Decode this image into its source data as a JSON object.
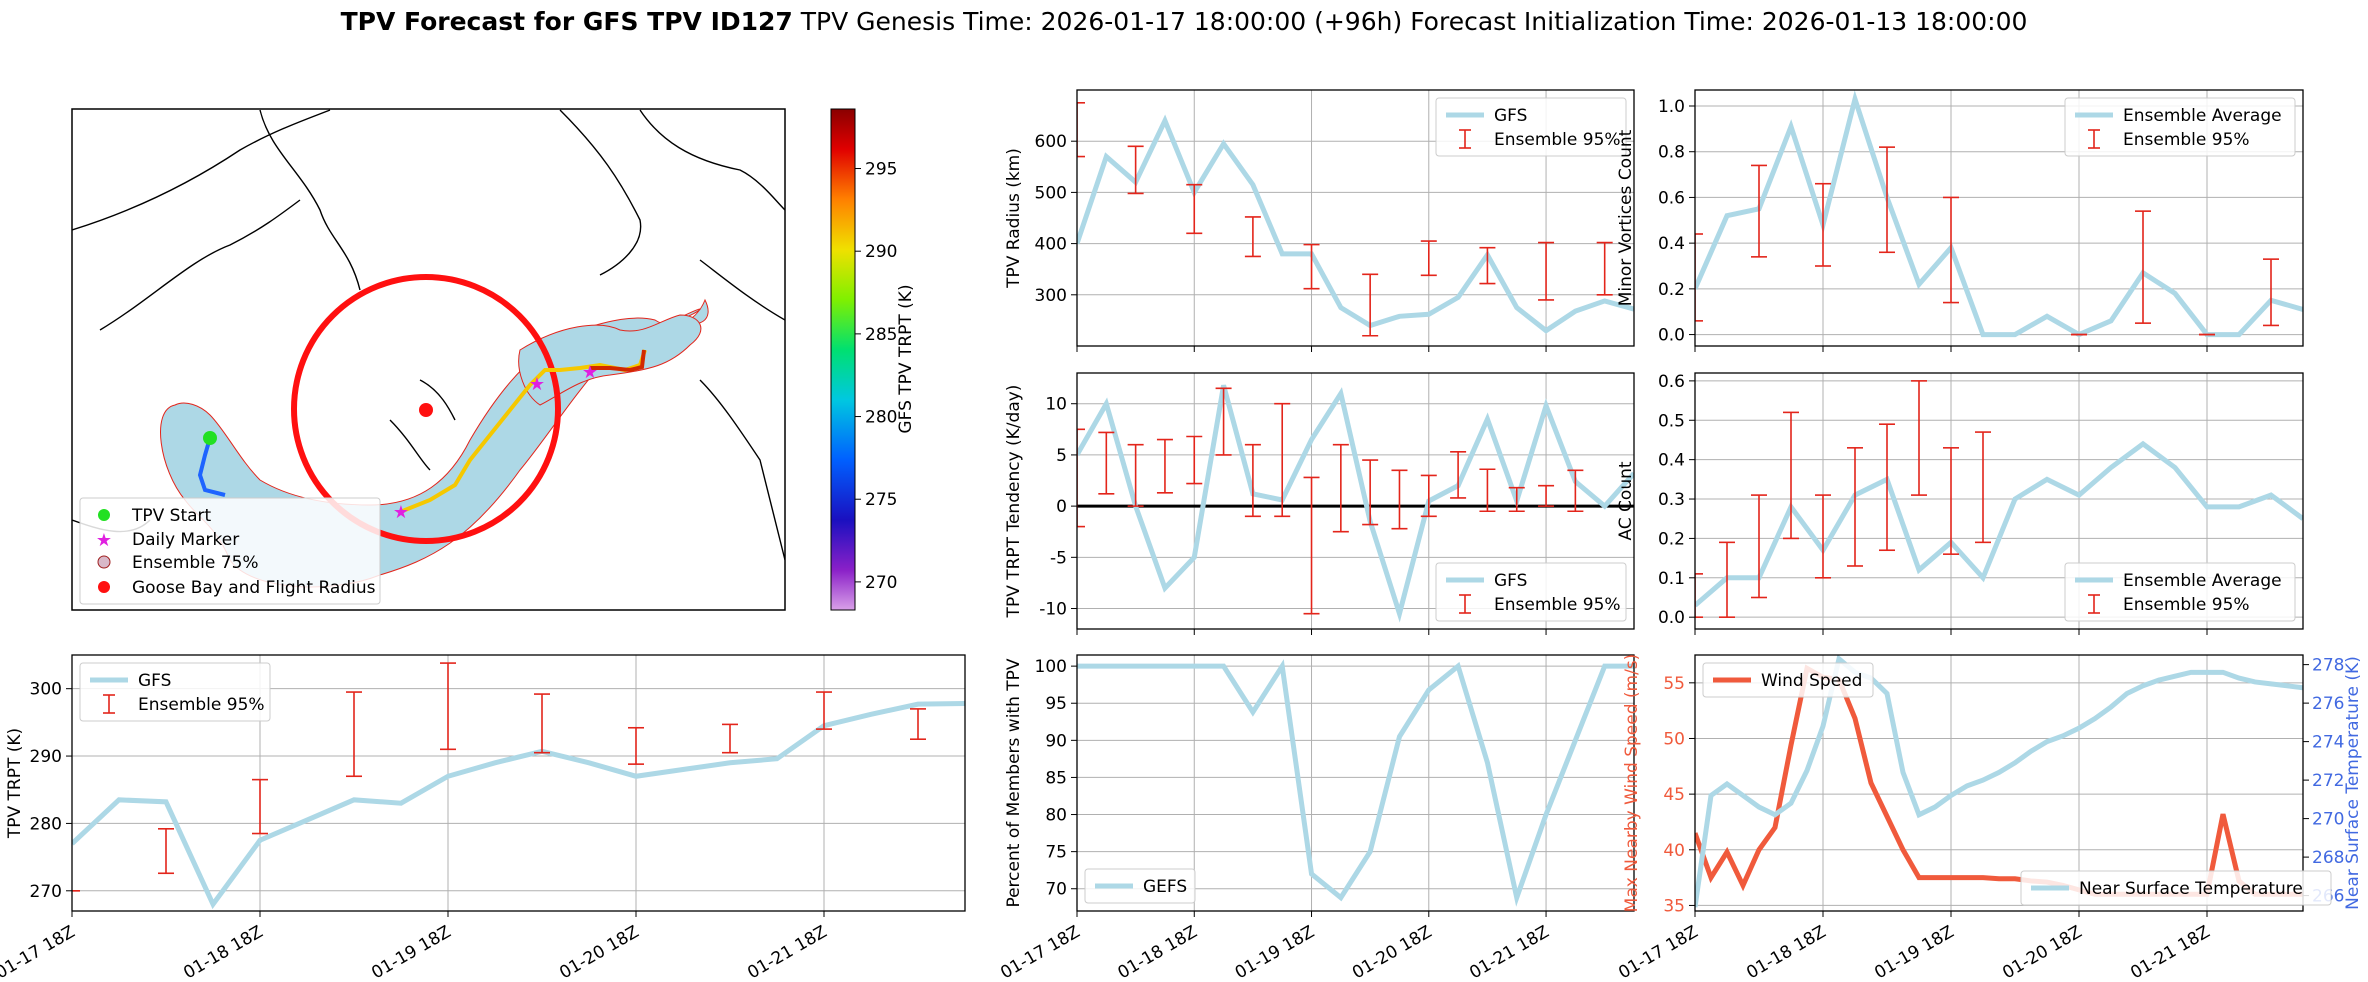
{
  "figure": {
    "title_bold": "TPV Forecast for GFS TPV ID127",
    "title_genesis": "TPV Genesis Time: 2026-01-17 18:00:00 (+96h)",
    "title_init": "Forecast Initialization Time: 2026-01-13 18:00:00",
    "x_tick_labels": [
      "01-17 18Z",
      "01-18 18Z",
      "01-19 18Z",
      "01-20 18Z",
      "01-21 18Z"
    ]
  },
  "colors": {
    "gfs": "#add8e6",
    "err": "#e3251b",
    "wind": "#f05a3c",
    "temp_axis": "#4169e1",
    "ocean": "#add8e6"
  },
  "map": {
    "colorbar_label": "GFS TPV TRPT (K)",
    "colorbar_ticks": [
      "270",
      "275",
      "280",
      "285",
      "290",
      "295"
    ],
    "legend": [
      "TPV Start",
      "Daily Marker",
      "Ensemble 75%",
      "Goose Bay and Flight Radius"
    ]
  },
  "chart_data": [
    {
      "id": "radius",
      "type": "line",
      "ylabel": "TPV Radius (km)",
      "ylim": [
        200,
        700
      ],
      "yticks": [
        300,
        400,
        500,
        600
      ],
      "legend": [
        "GFS",
        "Ensemble 95%"
      ],
      "x": [
        0,
        0.25,
        0.5,
        0.75,
        1,
        1.25,
        1.5,
        1.75,
        2,
        2.25,
        2.5,
        2.75,
        3,
        3.25,
        3.5,
        3.75,
        4,
        4.25,
        4.5,
        4.75
      ],
      "values": [
        400,
        570,
        520,
        640,
        500,
        595,
        515,
        380,
        380,
        275,
        240,
        258,
        262,
        295,
        378,
        275,
        230,
        268,
        288,
        272
      ],
      "errorbars": [
        {
          "x": 0,
          "lo": 570,
          "hi": 675
        },
        {
          "x": 0.5,
          "lo": 498,
          "hi": 590
        },
        {
          "x": 1,
          "lo": 420,
          "hi": 515
        },
        {
          "x": 1.5,
          "lo": 375,
          "hi": 452
        },
        {
          "x": 2,
          "lo": 312,
          "hi": 398
        },
        {
          "x": 2.5,
          "lo": 220,
          "hi": 340
        },
        {
          "x": 3,
          "lo": 338,
          "hi": 405
        },
        {
          "x": 3.5,
          "lo": 322,
          "hi": 392
        },
        {
          "x": 4,
          "lo": 290,
          "hi": 402
        },
        {
          "x": 4.5,
          "lo": 300,
          "hi": 402
        }
      ]
    },
    {
      "id": "minor",
      "type": "line",
      "ylabel": "Minor Vortices Count",
      "ylim": [
        -0.05,
        1.07
      ],
      "yticks": [
        0.0,
        0.2,
        0.4,
        0.6,
        0.8,
        1.0
      ],
      "legend": [
        "Ensemble Average",
        "Ensemble 95%"
      ],
      "x": [
        0,
        0.25,
        0.5,
        0.75,
        1,
        1.25,
        1.5,
        1.75,
        2,
        2.25,
        2.5,
        2.75,
        3,
        3.25,
        3.5,
        3.75,
        4,
        4.25,
        4.5,
        4.75
      ],
      "values": [
        0.2,
        0.52,
        0.55,
        0.91,
        0.48,
        1.03,
        0.6,
        0.22,
        0.38,
        0,
        0,
        0.08,
        0,
        0.06,
        0.27,
        0.18,
        0,
        0,
        0.15,
        0.11
      ],
      "errorbars": [
        {
          "x": 0,
          "lo": 0.06,
          "hi": 0.44
        },
        {
          "x": 0.5,
          "lo": 0.34,
          "hi": 0.74
        },
        {
          "x": 1,
          "lo": 0.3,
          "hi": 0.66
        },
        {
          "x": 1.5,
          "lo": 0.36,
          "hi": 0.82
        },
        {
          "x": 2,
          "lo": 0.14,
          "hi": 0.6
        },
        {
          "x": 3,
          "lo": 0,
          "hi": 0
        },
        {
          "x": 3.5,
          "lo": 0.05,
          "hi": 0.54
        },
        {
          "x": 4,
          "lo": 0,
          "hi": 0
        },
        {
          "x": 4.5,
          "lo": 0.04,
          "hi": 0.33
        }
      ]
    },
    {
      "id": "tendency",
      "type": "line",
      "ylabel": "TPV TRPT Tendency (K/day)",
      "ylim": [
        -12,
        13
      ],
      "yticks": [
        -10,
        -5,
        0,
        5,
        10
      ],
      "legend": [
        "GFS",
        "Ensemble 95%"
      ],
      "x": [
        0,
        0.25,
        0.5,
        0.75,
        1,
        1.25,
        1.5,
        1.75,
        2,
        2.25,
        2.5,
        2.75,
        3,
        3.25,
        3.5,
        3.75,
        4,
        4.25,
        4.5,
        4.75
      ],
      "values": [
        5,
        10,
        0,
        -8,
        -5,
        11.8,
        1.2,
        0.6,
        6.5,
        11,
        -1.5,
        -10.5,
        0.5,
        2,
        8.5,
        0.5,
        9.8,
        2.4,
        0,
        3.2
      ],
      "errorbars": [
        {
          "x": 0,
          "lo": -2,
          "hi": 7.5
        },
        {
          "x": 0.25,
          "lo": 1.2,
          "hi": 7.2
        },
        {
          "x": 0.5,
          "lo": 0,
          "hi": 6
        },
        {
          "x": 0.75,
          "lo": 1.3,
          "hi": 6.5
        },
        {
          "x": 1,
          "lo": 2.2,
          "hi": 6.8
        },
        {
          "x": 1.25,
          "lo": 5,
          "hi": 11.5
        },
        {
          "x": 1.5,
          "lo": -1,
          "hi": 6
        },
        {
          "x": 1.75,
          "lo": -1,
          "hi": 10
        },
        {
          "x": 2,
          "lo": -10.5,
          "hi": 2.8
        },
        {
          "x": 2.25,
          "lo": -2.5,
          "hi": 6
        },
        {
          "x": 2.5,
          "lo": -1.8,
          "hi": 4.5
        },
        {
          "x": 2.75,
          "lo": -2.2,
          "hi": 3.5
        },
        {
          "x": 3,
          "lo": -1,
          "hi": 3
        },
        {
          "x": 3.25,
          "lo": 0.8,
          "hi": 5.3
        },
        {
          "x": 3.5,
          "lo": -0.5,
          "hi": 3.6
        },
        {
          "x": 3.75,
          "lo": -0.5,
          "hi": 1.8
        },
        {
          "x": 4,
          "lo": 0,
          "hi": 2
        },
        {
          "x": 4.25,
          "lo": -0.5,
          "hi": 3.5
        }
      ]
    },
    {
      "id": "ac",
      "type": "line",
      "ylabel": "AC Count",
      "ylim": [
        -0.03,
        0.62
      ],
      "yticks": [
        0.0,
        0.1,
        0.2,
        0.3,
        0.4,
        0.5,
        0.6
      ],
      "legend": [
        "Ensemble Average",
        "Ensemble 95%"
      ],
      "x": [
        0,
        0.25,
        0.5,
        0.75,
        1,
        1.25,
        1.5,
        1.75,
        2,
        2.25,
        2.5,
        2.75,
        3,
        3.25,
        3.5,
        3.75,
        4,
        4.25,
        4.5,
        4.75
      ],
      "values": [
        0.03,
        0.1,
        0.1,
        0.28,
        0.17,
        0.31,
        0.35,
        0.12,
        0.19,
        0.1,
        0.3,
        0.35,
        0.31,
        0.38,
        0.44,
        0.38,
        0.28,
        0.28,
        0.31,
        0.25
      ],
      "errorbars": [
        {
          "x": 0,
          "lo": 0,
          "hi": 0.11
        },
        {
          "x": 0.25,
          "lo": 0,
          "hi": 0.19
        },
        {
          "x": 0.5,
          "lo": 0.05,
          "hi": 0.31
        },
        {
          "x": 0.75,
          "lo": 0.2,
          "hi": 0.52
        },
        {
          "x": 1,
          "lo": 0.1,
          "hi": 0.31
        },
        {
          "x": 1.25,
          "lo": 0.13,
          "hi": 0.43
        },
        {
          "x": 1.5,
          "lo": 0.17,
          "hi": 0.49
        },
        {
          "x": 1.75,
          "lo": 0.31,
          "hi": 0.6
        },
        {
          "x": 2,
          "lo": 0.16,
          "hi": 0.43
        },
        {
          "x": 2.25,
          "lo": 0.19,
          "hi": 0.47
        }
      ]
    },
    {
      "id": "trpt",
      "type": "line",
      "ylabel": "TPV TRPT (K)",
      "ylim": [
        267,
        305
      ],
      "yticks": [
        270,
        280,
        290,
        300
      ],
      "legend": [
        "GFS",
        "Ensemble 95%"
      ],
      "x": [
        0,
        0.25,
        0.5,
        0.75,
        1,
        1.25,
        1.5,
        1.75,
        2,
        2.25,
        2.5,
        2.75,
        3,
        3.25,
        3.5,
        3.75,
        4,
        4.25,
        4.5,
        4.75
      ],
      "values": [
        277,
        283.5,
        283.2,
        268,
        277.5,
        280.5,
        283.5,
        283,
        287,
        289,
        290.7,
        289,
        287,
        288,
        289,
        289.6,
        294.5,
        296.2,
        297.7,
        297.8
      ],
      "errorbars": [
        {
          "x": 0,
          "lo": 270,
          "hi": 270
        },
        {
          "x": 0.5,
          "lo": 272.6,
          "hi": 279.2
        },
        {
          "x": 1,
          "lo": 278.5,
          "hi": 286.5
        },
        {
          "x": 1.5,
          "lo": 287,
          "hi": 299.5
        },
        {
          "x": 2,
          "lo": 291,
          "hi": 303.8
        },
        {
          "x": 2.5,
          "lo": 290.5,
          "hi": 299.2
        },
        {
          "x": 3,
          "lo": 288.8,
          "hi": 294.2
        },
        {
          "x": 3.5,
          "lo": 290.5,
          "hi": 294.7
        },
        {
          "x": 4,
          "lo": 294,
          "hi": 299.5
        },
        {
          "x": 4.5,
          "lo": 292.5,
          "hi": 297
        }
      ]
    },
    {
      "id": "members",
      "type": "line",
      "ylabel": "Percent of Members with TPV",
      "ylim": [
        67,
        101.5
      ],
      "yticks": [
        70,
        75,
        80,
        85,
        90,
        95,
        100
      ],
      "legend": [
        "GEFS"
      ],
      "x": [
        0,
        0.25,
        0.5,
        0.75,
        1,
        1.25,
        1.5,
        1.75,
        2,
        2.25,
        2.5,
        2.75,
        3,
        3.25,
        3.5,
        3.75,
        4,
        4.25,
        4.5,
        4.75
      ],
      "values": [
        100,
        100,
        100,
        100,
        100,
        100,
        93.8,
        100,
        72,
        68.8,
        75,
        90.5,
        96.8,
        100,
        87,
        68.8,
        80,
        90,
        100,
        100
      ]
    },
    {
      "id": "wind_temp",
      "type": "line",
      "ylabel": "Max Nearby Wind Speed (m/s)",
      "ylabel_right": "Near Surface Temperature (K)",
      "ylim": [
        34.5,
        57.5
      ],
      "yticks": [
        35,
        40,
        45,
        50,
        55
      ],
      "ylim_right": [
        265.2,
        278.5
      ],
      "yticks_right": [
        266,
        268,
        270,
        272,
        274,
        276,
        278
      ],
      "legend": [
        "Wind Speed",
        "Near Surface Temperature"
      ],
      "x": [
        0,
        0.125,
        0.25,
        0.375,
        0.5,
        0.625,
        0.75,
        0.875,
        1,
        1.125,
        1.25,
        1.375,
        1.5,
        1.625,
        1.75,
        1.875,
        2,
        2.125,
        2.25,
        2.375,
        2.5,
        2.625,
        2.75,
        2.875,
        3,
        3.125,
        3.25,
        3.375,
        3.5,
        3.625,
        3.75,
        3.875,
        4,
        4.125,
        4.25,
        4.375,
        4.5,
        4.625,
        4.75
      ],
      "series": [
        {
          "name": "Wind Speed",
          "axis": "left",
          "values": [
            41.5,
            37.5,
            39.8,
            36.8,
            40,
            42,
            49.4,
            56.3,
            55.5,
            55.3,
            51.8,
            46,
            43,
            40,
            37.5,
            37.5,
            37.5,
            37.5,
            37.5,
            37.4,
            37.4,
            37.2,
            37.1,
            36.8,
            36.4,
            36,
            36,
            36,
            36,
            36,
            36,
            36,
            36,
            43.2,
            37.2,
            36,
            36,
            36,
            36
          ]
        },
        {
          "name": "Near Surface Temperature",
          "axis": "right",
          "values": [
            265.4,
            271.2,
            271.8,
            271.2,
            270.6,
            270.2,
            270.8,
            272.5,
            274.8,
            278.3,
            277.6,
            277.3,
            276.5,
            272.4,
            270.2,
            270.6,
            271.2,
            271.7,
            272,
            272.4,
            272.9,
            273.5,
            274,
            274.3,
            274.7,
            275.2,
            275.8,
            276.5,
            276.9,
            277.2,
            277.4,
            277.6,
            277.6,
            277.6,
            277.3,
            277.1,
            277,
            276.9,
            276.8
          ]
        }
      ]
    }
  ]
}
